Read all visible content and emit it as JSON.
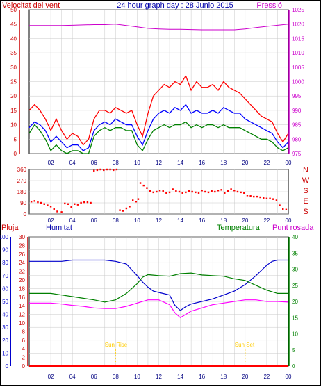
{
  "header": {
    "left_label": "Velocitat del vent",
    "title": "24 hour graph day : 28 Junio 2015",
    "right_label": "Pressió"
  },
  "colors": {
    "wind_max": "#ff0000",
    "wind_avg": "#0000ff",
    "wind_min": "#008000",
    "pressure": "#cc00cc",
    "direction": "#ff0000",
    "humidity": "#0000cc",
    "temperature": "#008000",
    "dewpoint": "#ff00ff",
    "rain": "#ff0000",
    "sun": "#ffcc00",
    "grid": "#c8c8c8",
    "frame": "#000000",
    "left_axis": "#cc0000",
    "right_axis": "#cc00cc",
    "humidity_axis": "#0000cc",
    "temp_axis": "#008000"
  },
  "x_tick_labels": [
    "02",
    "04",
    "06",
    "08",
    "10",
    "12",
    "14",
    "16",
    "18",
    "20",
    "22",
    "00"
  ],
  "chart_data": [
    {
      "type": "line",
      "title": "24 hour graph day : 28 Junio 2015",
      "x_unit": "hour",
      "xlim": [
        0,
        24
      ],
      "left_axis": {
        "label": "Velocitat del vent",
        "ylim": [
          0,
          50
        ],
        "ticks": [
          0,
          5,
          10,
          15,
          20,
          25,
          30,
          35,
          40,
          45,
          50
        ]
      },
      "right_axis": {
        "label": "Pressió",
        "ylim": [
          975,
          1025
        ],
        "ticks": [
          975,
          980,
          985,
          990,
          995,
          1000,
          1005,
          1010,
          1015,
          1020,
          1025
        ]
      },
      "grid": true,
      "series": [
        {
          "key": "wind_max",
          "axis": "left",
          "x": [
            0,
            0.5,
            1,
            1.5,
            2,
            2.5,
            3,
            3.5,
            4,
            4.5,
            5,
            5.5,
            6,
            6.5,
            7,
            7.5,
            8,
            8.5,
            9,
            9.5,
            10,
            10.5,
            11,
            11.5,
            12,
            12.5,
            13,
            13.5,
            14,
            14.5,
            15,
            15.5,
            16,
            16.5,
            17,
            17.5,
            18,
            18.5,
            19,
            19.5,
            20,
            20.5,
            21,
            21.5,
            22,
            22.5,
            23,
            23.5,
            24
          ],
          "y": [
            15,
            17,
            15,
            12,
            8,
            12,
            8,
            5,
            7,
            6,
            3,
            5,
            12,
            15,
            15,
            14,
            16,
            15,
            14,
            15,
            10,
            6,
            14,
            20,
            22,
            24,
            23,
            25,
            24,
            27,
            22,
            25,
            23,
            23,
            24,
            22,
            25,
            23,
            22,
            21,
            19,
            17,
            15,
            13,
            12,
            11,
            7,
            4,
            7
          ]
        },
        {
          "key": "wind_avg",
          "axis": "left",
          "x": [
            0,
            0.5,
            1,
            1.5,
            2,
            2.5,
            3,
            3.5,
            4,
            4.5,
            5,
            5.5,
            6,
            6.5,
            7,
            7.5,
            8,
            8.5,
            9,
            9.5,
            10,
            10.5,
            11,
            11.5,
            12,
            12.5,
            13,
            13.5,
            14,
            14.5,
            15,
            15.5,
            16,
            16.5,
            17,
            17.5,
            18,
            18.5,
            19,
            19.5,
            20,
            20.5,
            21,
            21.5,
            22,
            22.5,
            23,
            23.5,
            24
          ],
          "y": [
            9,
            11,
            10,
            8,
            4,
            6,
            4,
            2,
            3,
            3,
            1,
            2,
            8,
            10,
            11,
            10,
            12,
            11,
            10,
            10,
            6,
            3,
            8,
            12,
            14,
            15,
            14,
            16,
            15,
            17,
            14,
            15,
            14,
            14,
            15,
            14,
            16,
            15,
            14,
            14,
            12,
            11,
            10,
            9,
            8,
            7,
            4,
            2,
            4
          ]
        },
        {
          "key": "wind_min",
          "axis": "left",
          "x": [
            0,
            0.5,
            1,
            1.5,
            2,
            2.5,
            3,
            3.5,
            4,
            4.5,
            5,
            5.5,
            6,
            6.5,
            7,
            7.5,
            8,
            8.5,
            9,
            9.5,
            10,
            10.5,
            11,
            11.5,
            12,
            12.5,
            13,
            13.5,
            14,
            14.5,
            15,
            15.5,
            16,
            16.5,
            17,
            17.5,
            18,
            18.5,
            19,
            19.5,
            20,
            20.5,
            21,
            21.5,
            22,
            22.5,
            23,
            23.5,
            24
          ],
          "y": [
            7,
            10,
            8,
            5,
            1,
            3,
            1,
            0,
            1,
            1,
            0,
            0,
            6,
            8,
            9,
            8,
            9,
            9,
            8,
            8,
            3,
            1,
            5,
            8,
            9,
            10,
            9,
            10,
            10,
            11,
            9,
            10,
            9,
            10,
            10,
            9,
            10,
            9,
            9,
            9,
            8,
            7,
            6,
            5,
            5,
            4,
            2,
            1,
            2
          ]
        },
        {
          "key": "pressure",
          "axis": "right",
          "x": [
            0,
            1,
            2,
            3,
            4,
            5,
            6,
            7,
            8,
            9,
            10,
            11,
            12,
            13,
            14,
            15,
            16,
            17,
            18,
            19,
            20,
            21,
            22,
            23,
            24
          ],
          "y": [
            1019.5,
            1019.5,
            1019.5,
            1019.5,
            1019.6,
            1019.7,
            1019.8,
            1019.8,
            1020,
            1019.5,
            1019,
            1018.5,
            1018.3,
            1018.2,
            1018.2,
            1018.1,
            1018,
            1018,
            1018,
            1018,
            1018.3,
            1018.8,
            1019.2,
            1019.6,
            1020
          ]
        }
      ]
    },
    {
      "type": "scatter",
      "xlim": [
        0,
        24
      ],
      "left_axis": {
        "ylim": [
          0,
          360
        ],
        "ticks": [
          0,
          90,
          180,
          270,
          360
        ]
      },
      "right_axis": {
        "ticks": [
          "S",
          "E",
          "S",
          "W",
          "N"
        ]
      },
      "series": [
        {
          "key": "direction",
          "axis": "left",
          "x": [
            0.2,
            0.5,
            0.8,
            1.1,
            1.4,
            1.7,
            2.0,
            2.3,
            2.6,
            3.0,
            3.3,
            3.6,
            3.9,
            4.2,
            4.5,
            4.8,
            5.1,
            5.4,
            5.7,
            6.0,
            6.3,
            6.6,
            6.9,
            7.2,
            7.5,
            7.8,
            8.1,
            8.4,
            8.7,
            9.0,
            9.3,
            9.6,
            9.9,
            10.1,
            10.3,
            10.6,
            10.9,
            11.2,
            11.5,
            11.8,
            12.1,
            12.4,
            12.7,
            13.0,
            13.3,
            13.6,
            13.9,
            14.2,
            14.5,
            14.8,
            15.1,
            15.4,
            15.7,
            16.0,
            16.3,
            16.6,
            16.9,
            17.2,
            17.5,
            17.8,
            18.1,
            18.4,
            18.7,
            19.0,
            19.3,
            19.6,
            19.9,
            20.2,
            20.5,
            20.8,
            21.1,
            21.4,
            21.7,
            22.0,
            22.3,
            22.6,
            22.9,
            23.2,
            23.5,
            23.8
          ],
          "y": [
            100,
            105,
            95,
            90,
            80,
            70,
            60,
            40,
            20,
            15,
            85,
            80,
            55,
            80,
            75,
            90,
            95,
            95,
            90,
            350,
            355,
            360,
            355,
            360,
            360,
            355,
            360,
            30,
            25,
            45,
            60,
            110,
            100,
            120,
            250,
            230,
            210,
            185,
            175,
            180,
            190,
            185,
            170,
            175,
            200,
            185,
            180,
            170,
            175,
            185,
            180,
            175,
            170,
            190,
            180,
            175,
            185,
            180,
            190,
            195,
            170,
            185,
            200,
            190,
            180,
            175,
            170,
            150,
            145,
            140,
            140,
            135,
            130,
            125,
            125,
            120,
            110,
            70,
            40,
            35
          ]
        }
      ]
    },
    {
      "type": "line",
      "xlim": [
        0,
        24
      ],
      "axes": {
        "rain": {
          "label": "Pluja",
          "ylim": [
            0,
            30
          ],
          "ticks": [
            0,
            2,
            4,
            6,
            8,
            10,
            12,
            14,
            16,
            18,
            20,
            22,
            24,
            26,
            28,
            30
          ]
        },
        "humidity": {
          "label": "Humitat",
          "ylim": [
            0,
            100
          ],
          "ticks": [
            0,
            10,
            20,
            30,
            40,
            50,
            60,
            70,
            80,
            90,
            100
          ]
        },
        "temperature": {
          "label": "Temperatura",
          "ylim": [
            0,
            40
          ],
          "ticks": [
            0,
            5,
            10,
            15,
            20,
            25,
            30,
            35,
            40
          ]
        }
      },
      "annotations": [
        {
          "label": "Sun Rise",
          "x": 8
        },
        {
          "label": "Sun Set",
          "x": 20
        }
      ],
      "legend": [
        "Pluja",
        "Humitat",
        "Temperatura",
        "Punt rosada"
      ],
      "series": [
        {
          "key": "humidity",
          "axis": "humidity",
          "x": [
            0,
            1,
            2,
            3,
            4,
            5,
            6,
            7,
            8,
            9,
            10,
            10.5,
            11,
            11.5,
            12,
            13,
            13.5,
            14,
            14.5,
            15,
            16,
            17,
            18,
            19,
            20,
            21,
            22,
            22.5,
            23,
            24
          ],
          "y": [
            81,
            81,
            81,
            81,
            82,
            82,
            82,
            82,
            81,
            79,
            70,
            65,
            61,
            58,
            57,
            55,
            47,
            43,
            46,
            48,
            50,
            52,
            55,
            58,
            63,
            70,
            78,
            81,
            82,
            82
          ]
        },
        {
          "key": "temperature",
          "axis": "temperature",
          "x": [
            0,
            1,
            2,
            3,
            4,
            5,
            6,
            7,
            8,
            9,
            10,
            10.5,
            11,
            12,
            13,
            14,
            15,
            16,
            17,
            18,
            19,
            20,
            21,
            22,
            23,
            24
          ],
          "y": [
            22.5,
            22.5,
            22.5,
            22.0,
            21.5,
            21.0,
            20.5,
            19.8,
            20.5,
            22.5,
            25.5,
            27.5,
            28.3,
            28.0,
            27.8,
            28.6,
            28.8,
            28.2,
            28.0,
            27.8,
            27.0,
            26.5,
            25.0,
            23.5,
            22.5,
            22.5
          ]
        },
        {
          "key": "dewpoint",
          "axis": "temperature",
          "x": [
            0,
            1,
            2,
            3,
            4,
            5,
            6,
            7,
            8,
            9,
            10,
            11,
            12,
            13,
            13.5,
            14,
            14.5,
            15,
            16,
            17,
            18,
            19,
            20,
            21,
            22,
            23,
            24
          ],
          "y": [
            19.5,
            19.5,
            19.5,
            19.2,
            18.8,
            18.5,
            18.0,
            17.8,
            17.8,
            18.5,
            19.5,
            20.5,
            20.5,
            19.0,
            16.5,
            15.0,
            16.0,
            17.0,
            18.0,
            19.0,
            19.5,
            20.0,
            20.5,
            20.5,
            20.0,
            20.0,
            19.8
          ]
        },
        {
          "key": "rain",
          "axis": "rain",
          "x": [
            0,
            24
          ],
          "y": [
            0,
            0
          ]
        }
      ]
    }
  ]
}
